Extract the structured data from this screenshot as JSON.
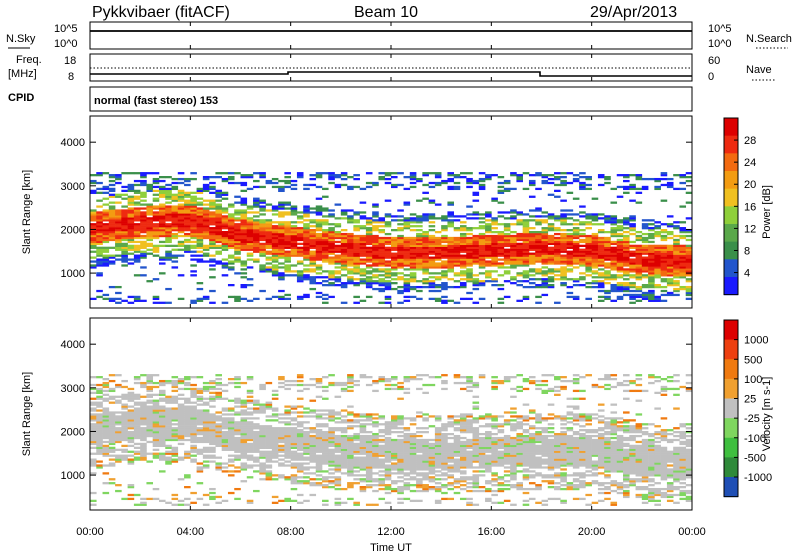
{
  "header": {
    "title": "Pykkvibaer (fitACF)",
    "beam": "Beam 10",
    "date": "29/Apr/2013"
  },
  "strip_noise": {
    "left_label": "N.Sky",
    "right_label": "N.Search",
    "left_ticks": [
      "10^5",
      "10^0"
    ],
    "right_ticks": [
      "10^5",
      "10^0"
    ]
  },
  "strip_freq": {
    "left_label_1": "Freq.",
    "left_label_2": "[MHz]",
    "right_label": "Nave",
    "left_ticks": [
      "18",
      "8"
    ],
    "right_ticks": [
      "60",
      "0"
    ]
  },
  "cpid": {
    "label": "CPID",
    "mode": "normal (fast stereo) 153"
  },
  "x_axis": {
    "label": "Time UT",
    "ticks": [
      "00:00",
      "04:00",
      "08:00",
      "12:00",
      "16:00",
      "20:00",
      "00:00"
    ]
  },
  "y_axis": {
    "label": "Slant Range [km]",
    "ticks": [
      "4000",
      "3000",
      "2000",
      "1000"
    ]
  },
  "power_scale": {
    "label": "Power [dB]",
    "ticks": [
      "28",
      "24",
      "20",
      "16",
      "12",
      "8",
      "4"
    ],
    "colors": [
      "#1a1aff",
      "#2255cc",
      "#3a8f4a",
      "#5aa84a",
      "#8fcf3a",
      "#f0c020",
      "#f39c12",
      "#f36a10",
      "#ee2a10",
      "#dd0000"
    ]
  },
  "velocity_scale": {
    "label": "Velocity [m s-1]",
    "ticks": [
      "1000",
      "500",
      "100",
      "25",
      "-25",
      "-100",
      "-500",
      "-1000"
    ],
    "colors": [
      "#1f4fb5",
      "#2f8a3a",
      "#3fbf3f",
      "#7fd65f",
      "#c0c0c0",
      "#f0a030",
      "#f07a10",
      "#ee4010",
      "#dd0000"
    ]
  },
  "chart_data": [
    {
      "type": "heatmap",
      "title": "Power",
      "xlabel": "Time UT",
      "ylabel": "Slant Range [km]",
      "xlim": [
        "00:00",
        "24:00"
      ],
      "ylim": [
        200,
        4600
      ],
      "colorbar": {
        "label": "Power [dB]",
        "range": [
          0,
          32
        ]
      },
      "main_band_km": [
        [
          "00:00",
          2000
        ],
        [
          "02:00",
          2150
        ],
        [
          "04:00",
          2200
        ],
        [
          "06:00",
          1850
        ],
        [
          "08:00",
          1700
        ],
        [
          "10:00",
          1550
        ],
        [
          "12:00",
          1450
        ],
        [
          "14:00",
          1450
        ],
        [
          "16:00",
          1500
        ],
        [
          "18:00",
          1550
        ],
        [
          "20:00",
          1500
        ],
        [
          "22:00",
          1300
        ],
        [
          "24:00",
          1250
        ]
      ]
    },
    {
      "type": "heatmap",
      "title": "Velocity",
      "xlabel": "Time UT",
      "ylabel": "Slant Range [km]",
      "xlim": [
        "00:00",
        "24:00"
      ],
      "ylim": [
        200,
        4600
      ],
      "colorbar": {
        "label": "Velocity [m s-1]",
        "range": [
          -1000,
          1000
        ]
      },
      "main_band_km": [
        [
          "00:00",
          2000
        ],
        [
          "02:00",
          2150
        ],
        [
          "04:00",
          2200
        ],
        [
          "06:00",
          1850
        ],
        [
          "08:00",
          1700
        ],
        [
          "10:00",
          1550
        ],
        [
          "12:00",
          1450
        ],
        [
          "14:00",
          1450
        ],
        [
          "16:00",
          1500
        ],
        [
          "18:00",
          1550
        ],
        [
          "20:00",
          1500
        ],
        [
          "22:00",
          1300
        ],
        [
          "24:00",
          1250
        ]
      ]
    }
  ]
}
